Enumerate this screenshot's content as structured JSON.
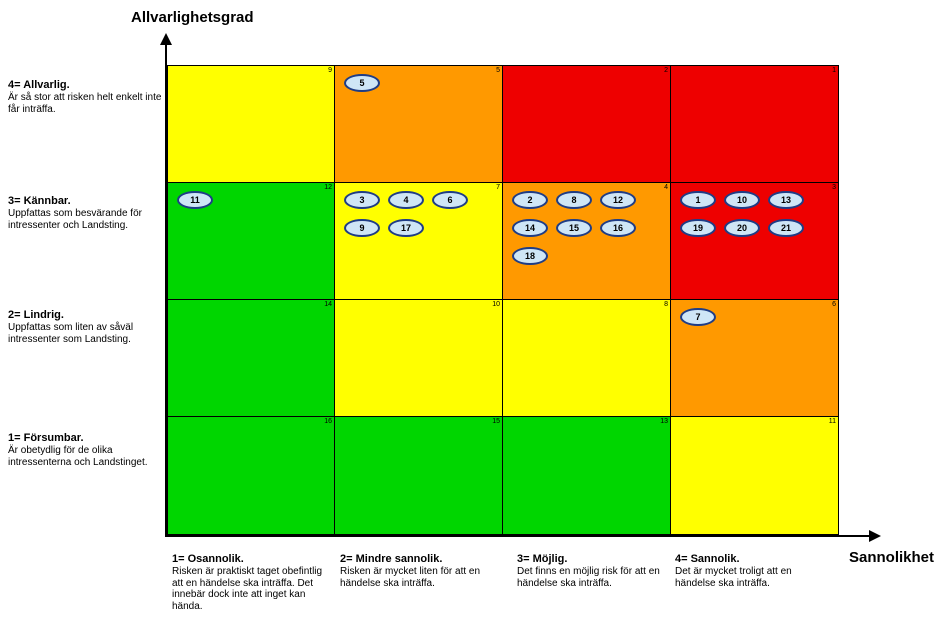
{
  "axes": {
    "y_title": "Allvarlighetsgrad",
    "x_title": "Sannolikhet"
  },
  "rows": [
    {
      "title": "4= Allvarlig.",
      "desc": "Är så stor att risken helt enkelt inte får inträffa."
    },
    {
      "title": "3= Kännbar.",
      "desc": "Uppfattas som besvärande för intressenter och Landsting."
    },
    {
      "title": "2= Lindrig.",
      "desc": "Uppfattas som liten av såväl intressenter som Landsting."
    },
    {
      "title": "1= Försumbar.",
      "desc": "Är obetydlig för de olika intressenterna och Landstinget."
    }
  ],
  "columns": [
    {
      "title": "1= Osannolik.",
      "desc": "Risken är praktiskt taget obefintlig att en händelse ska inträffa. Det innebär dock inte att inget kan hända."
    },
    {
      "title": "2= Mindre sannolik.",
      "desc": "Risken är mycket liten för att en händelse ska inträffa."
    },
    {
      "title": "3= Möjlig.",
      "desc": "Det finns en möjlig risk för att en händelse ska inträffa."
    },
    {
      "title": "4= Sannolik.",
      "desc": "Det är mycket troligt att en händelse ska inträffa."
    }
  ],
  "matrix": [
    [
      {
        "rank": "9",
        "color": "yellow"
      },
      {
        "rank": "5",
        "color": "orange"
      },
      {
        "rank": "2",
        "color": "red"
      },
      {
        "rank": "1",
        "color": "red"
      }
    ],
    [
      {
        "rank": "12",
        "color": "green"
      },
      {
        "rank": "7",
        "color": "yellow"
      },
      {
        "rank": "4",
        "color": "orange"
      },
      {
        "rank": "3",
        "color": "red"
      }
    ],
    [
      {
        "rank": "14",
        "color": "green"
      },
      {
        "rank": "10",
        "color": "yellow"
      },
      {
        "rank": "8",
        "color": "yellow"
      },
      {
        "rank": "6",
        "color": "orange"
      }
    ],
    [
      {
        "rank": "16",
        "color": "green"
      },
      {
        "rank": "15",
        "color": "green"
      },
      {
        "rank": "13",
        "color": "green"
      },
      {
        "rank": "11",
        "color": "yellow"
      }
    ]
  ],
  "colors": {
    "green": "#00d600",
    "yellow": "#ffff00",
    "orange": "#ff9900",
    "red": "#ee0000",
    "risk_fill": "#cfe6f6",
    "risk_border": "#1f3d86"
  },
  "risks": [
    {
      "id": "5",
      "severity": 4,
      "probability": 2
    },
    {
      "id": "11",
      "severity": 3,
      "probability": 1
    },
    {
      "id": "3",
      "severity": 3,
      "probability": 2
    },
    {
      "id": "4",
      "severity": 3,
      "probability": 2
    },
    {
      "id": "6",
      "severity": 3,
      "probability": 2
    },
    {
      "id": "9",
      "severity": 3,
      "probability": 2
    },
    {
      "id": "17",
      "severity": 3,
      "probability": 2
    },
    {
      "id": "2",
      "severity": 3,
      "probability": 3
    },
    {
      "id": "8",
      "severity": 3,
      "probability": 3
    },
    {
      "id": "12",
      "severity": 3,
      "probability": 3
    },
    {
      "id": "14",
      "severity": 3,
      "probability": 3
    },
    {
      "id": "15",
      "severity": 3,
      "probability": 3
    },
    {
      "id": "16",
      "severity": 3,
      "probability": 3
    },
    {
      "id": "18",
      "severity": 3,
      "probability": 3
    },
    {
      "id": "1",
      "severity": 3,
      "probability": 4
    },
    {
      "id": "10",
      "severity": 3,
      "probability": 4
    },
    {
      "id": "13",
      "severity": 3,
      "probability": 4
    },
    {
      "id": "19",
      "severity": 3,
      "probability": 4
    },
    {
      "id": "20",
      "severity": 3,
      "probability": 4
    },
    {
      "id": "21",
      "severity": 3,
      "probability": 4
    },
    {
      "id": "7",
      "severity": 2,
      "probability": 4
    }
  ]
}
